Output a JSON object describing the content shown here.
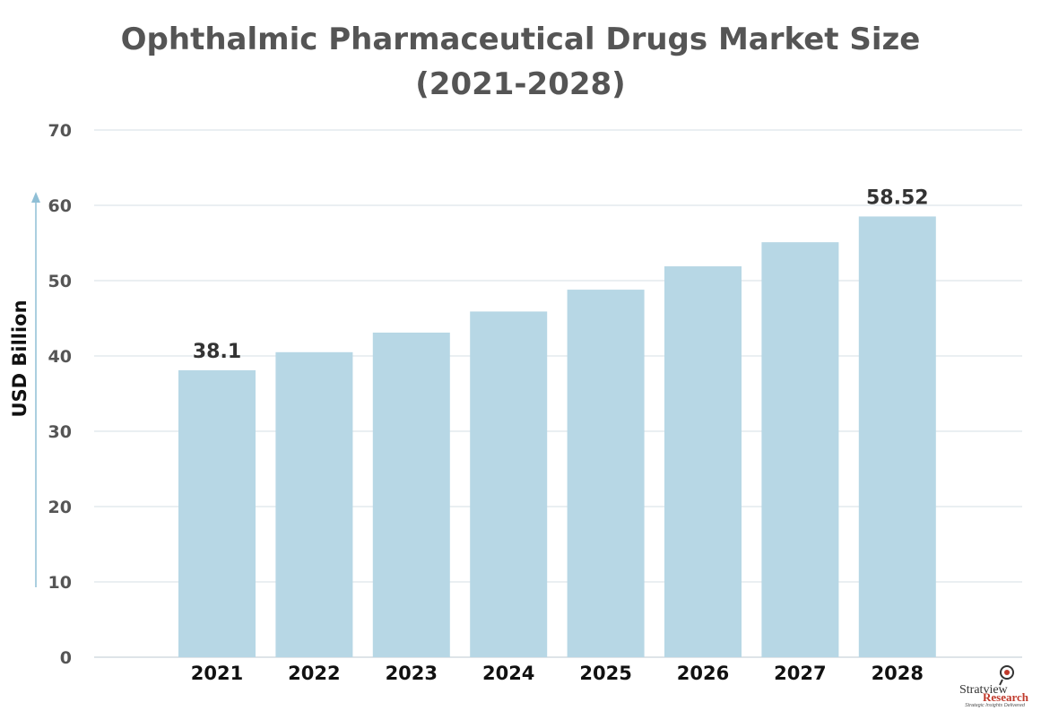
{
  "title_line1": "Ophthalmic Pharmaceutical Drugs Market Size",
  "title_line2": "(2021-2028)",
  "logo": {
    "name": "Stratview",
    "sub": "Research",
    "tagline": "Strategic Insights Delivered",
    "accent_color": "#c0392b"
  },
  "chart_data": {
    "type": "bar",
    "ylabel": "USD Billion",
    "ylim": [
      0,
      70
    ],
    "yticks": [
      0,
      10,
      20,
      30,
      40,
      50,
      60,
      70
    ],
    "grid": true,
    "categories": [
      "2021",
      "2022",
      "2023",
      "2024",
      "2025",
      "2026",
      "2027",
      "2028"
    ],
    "values": [
      38.1,
      40.5,
      43.1,
      45.9,
      48.8,
      51.9,
      55.1,
      58.52
    ],
    "data_labels": {
      "2021": "38.1",
      "2028": "58.52"
    },
    "bar_color": "#b7d7e5",
    "grid_color": "#dde5ea",
    "axis_arrow_color": "#8fbfd6"
  }
}
